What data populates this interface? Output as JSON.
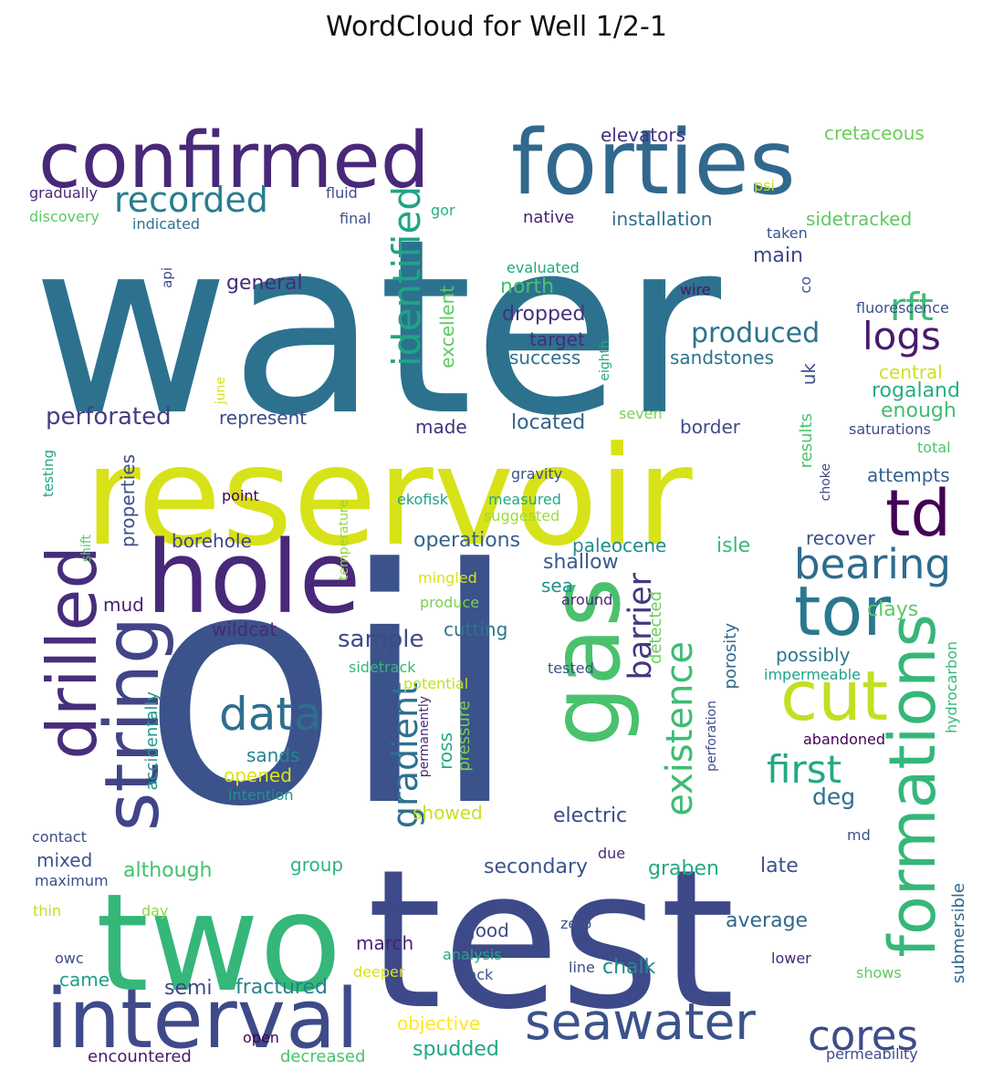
{
  "title": "WordCloud for Well 1/2-1",
  "words": [
    {
      "text": "water",
      "color": "#2c728e"
    },
    {
      "text": "oil",
      "color": "#3b528b"
    },
    {
      "text": "reservoir",
      "color": "#d8e219"
    },
    {
      "text": "test",
      "color": "#3e4989"
    },
    {
      "text": "two",
      "color": "#35b779"
    },
    {
      "text": "confirmed",
      "color": "#482878"
    },
    {
      "text": "forties",
      "color": "#31688e"
    },
    {
      "text": "hole",
      "color": "#482878"
    },
    {
      "text": "interval",
      "color": "#3e4a89"
    },
    {
      "text": "gas",
      "color": "#4ac16d"
    },
    {
      "text": "drilled",
      "color": "#472d7b"
    },
    {
      "text": "string",
      "color": "#414487"
    },
    {
      "text": "formations",
      "color": "#35b779"
    },
    {
      "text": "seawater",
      "color": "#3b528b"
    },
    {
      "text": "cut",
      "color": "#c2df23"
    },
    {
      "text": "tor",
      "color": "#2a788e"
    },
    {
      "text": "td",
      "color": "#440154"
    },
    {
      "text": "data",
      "color": "#2e6f8e"
    },
    {
      "text": "recorded",
      "color": "#287d8e"
    },
    {
      "text": "identified",
      "color": "#20a386"
    },
    {
      "text": "bearing",
      "color": "#2f6b8e"
    },
    {
      "text": "rft",
      "color": "#3dbc74"
    },
    {
      "text": "logs",
      "color": "#481b6d"
    },
    {
      "text": "first",
      "color": "#23a983"
    },
    {
      "text": "cores",
      "color": "#3e4c8a"
    },
    {
      "text": "gradient",
      "color": "#2d708e"
    },
    {
      "text": "existence",
      "color": "#3fbc73"
    },
    {
      "text": "barrier",
      "color": "#453781"
    },
    {
      "text": "produced",
      "color": "#2c738e"
    },
    {
      "text": "perforated",
      "color": "#433e85"
    },
    {
      "text": "sample",
      "color": "#3e4a89"
    },
    {
      "text": "general",
      "color": "#472c7a"
    },
    {
      "text": "deg",
      "color": "#2d708e"
    },
    {
      "text": "elevators",
      "color": "#46317e"
    },
    {
      "text": "cretaceous",
      "color": "#6ccd5a"
    },
    {
      "text": "native",
      "color": "#481f70"
    },
    {
      "text": "installation",
      "color": "#2e6e8e"
    },
    {
      "text": "sidetracked",
      "color": "#5ec962"
    },
    {
      "text": "main",
      "color": "#3f4788"
    },
    {
      "text": "north",
      "color": "#4ac16d"
    },
    {
      "text": "dropped",
      "color": "#46307e"
    },
    {
      "text": "target",
      "color": "#472c7a"
    },
    {
      "text": "success",
      "color": "#2d718e"
    },
    {
      "text": "sandstones",
      "color": "#2c728e"
    },
    {
      "text": "excellent",
      "color": "#5cc863"
    },
    {
      "text": "uk",
      "color": "#3b528b"
    },
    {
      "text": "central",
      "color": "#d0e11c"
    },
    {
      "text": "rogaland",
      "color": "#27ad81"
    },
    {
      "text": "enough",
      "color": "#40bd72"
    },
    {
      "text": "represent",
      "color": "#3e4c8a"
    },
    {
      "text": "made",
      "color": "#46327e"
    },
    {
      "text": "located",
      "color": "#33638d"
    },
    {
      "text": "border",
      "color": "#3e4a89"
    },
    {
      "text": "saturations",
      "color": "#3e4c8a"
    },
    {
      "text": "total",
      "color": "#4ec36b"
    },
    {
      "text": "attempts",
      "color": "#34608d"
    },
    {
      "text": "results",
      "color": "#4cc26c"
    },
    {
      "text": "properties",
      "color": "#3e4c8a"
    },
    {
      "text": "borehole",
      "color": "#414487"
    },
    {
      "text": "operations",
      "color": "#34618d"
    },
    {
      "text": "paleocene",
      "color": "#23898e"
    },
    {
      "text": "isle",
      "color": "#38b977"
    },
    {
      "text": "recover",
      "color": "#3b528b"
    },
    {
      "text": "shallow",
      "color": "#375a8c"
    },
    {
      "text": "sea",
      "color": "#21908d"
    },
    {
      "text": "clays",
      "color": "#5ec962"
    },
    {
      "text": "mud",
      "color": "#482475"
    },
    {
      "text": "wildcat",
      "color": "#482878"
    },
    {
      "text": "cutting",
      "color": "#2a768e"
    },
    {
      "text": "detected",
      "color": "#6ccd5a"
    },
    {
      "text": "porosity",
      "color": "#30698e"
    },
    {
      "text": "possibly",
      "color": "#2a788e"
    },
    {
      "text": "hydrocarbon",
      "color": "#35b779"
    },
    {
      "text": "impermeable",
      "color": "#20a386"
    },
    {
      "text": "sands",
      "color": "#25848e"
    },
    {
      "text": "opened",
      "color": "#dde318"
    },
    {
      "text": "intention",
      "color": "#20928c"
    },
    {
      "text": "ross",
      "color": "#25ab82"
    },
    {
      "text": "pressure",
      "color": "#74d055"
    },
    {
      "text": "showed",
      "color": "#c8e020"
    },
    {
      "text": "electric",
      "color": "#3e4989"
    },
    {
      "text": "accidentally",
      "color": "#1f968b"
    },
    {
      "text": "mixed",
      "color": "#3b528b"
    },
    {
      "text": "although",
      "color": "#44bf70"
    },
    {
      "text": "group",
      "color": "#2fb47c"
    },
    {
      "text": "secondary",
      "color": "#3a548c"
    },
    {
      "text": "graben",
      "color": "#23a983"
    },
    {
      "text": "late",
      "color": "#3b528b"
    },
    {
      "text": "submersible",
      "color": "#31688e"
    },
    {
      "text": "average",
      "color": "#31688e"
    },
    {
      "text": "good",
      "color": "#3e4c8a"
    },
    {
      "text": "march",
      "color": "#482374"
    },
    {
      "text": "semi",
      "color": "#3e4989"
    },
    {
      "text": "fractured",
      "color": "#25838e"
    },
    {
      "text": "came",
      "color": "#1fa088"
    },
    {
      "text": "chalk",
      "color": "#238a8d"
    },
    {
      "text": "objective",
      "color": "#fde725"
    },
    {
      "text": "spudded",
      "color": "#21a685"
    },
    {
      "text": "encountered",
      "color": "#481a6c"
    },
    {
      "text": "decreased",
      "color": "#4ac16d"
    },
    {
      "text": "permeability",
      "color": "#3e4c8a"
    },
    {
      "text": "gradually",
      "color": "#472a7a"
    },
    {
      "text": "discovery",
      "color": "#5ec962"
    },
    {
      "text": "fluid",
      "color": "#3e4c8a"
    },
    {
      "text": "indicated",
      "color": "#2d718e"
    },
    {
      "text": "final",
      "color": "#3b528b"
    },
    {
      "text": "gor",
      "color": "#29af7f"
    },
    {
      "text": "psi",
      "color": "#c2df23"
    },
    {
      "text": "taken",
      "color": "#3b528b"
    },
    {
      "text": "api",
      "color": "#3e4c8a"
    },
    {
      "text": "evaluated",
      "color": "#22a884"
    },
    {
      "text": "wire",
      "color": "#481668"
    },
    {
      "text": "co",
      "color": "#3b528b"
    },
    {
      "text": "fluorescence",
      "color": "#3b528b"
    },
    {
      "text": "june",
      "color": "#d8e219"
    },
    {
      "text": "eighth",
      "color": "#22a785"
    },
    {
      "text": "seven",
      "color": "#7ad151"
    },
    {
      "text": "testing",
      "color": "#20a386"
    },
    {
      "text": "point",
      "color": "#440154"
    },
    {
      "text": "gravity",
      "color": "#3b528b"
    },
    {
      "text": "ekofisk",
      "color": "#20a386"
    },
    {
      "text": "measured",
      "color": "#22a884"
    },
    {
      "text": "suggested",
      "color": "#a0da39"
    },
    {
      "text": "choke",
      "color": "#3e4989"
    },
    {
      "text": "temperature",
      "color": "#8fd744"
    },
    {
      "text": "shift",
      "color": "#5ec962"
    },
    {
      "text": "mingled",
      "color": "#d8e219"
    },
    {
      "text": "produce",
      "color": "#7ad151"
    },
    {
      "text": "around",
      "color": "#482878"
    },
    {
      "text": "sidetrack",
      "color": "#35b779"
    },
    {
      "text": "tested",
      "color": "#3b528b"
    },
    {
      "text": "potential",
      "color": "#c2df23"
    },
    {
      "text": "permanently",
      "color": "#482878"
    },
    {
      "text": "abandoned",
      "color": "#440154"
    },
    {
      "text": "perforation",
      "color": "#3e4c8a"
    },
    {
      "text": "contact",
      "color": "#3e4c8a"
    },
    {
      "text": "md",
      "color": "#3b528b"
    },
    {
      "text": "due",
      "color": "#482878"
    },
    {
      "text": "maximum",
      "color": "#3e4c8a"
    },
    {
      "text": "thin",
      "color": "#c2df23"
    },
    {
      "text": "day",
      "color": "#8fd744"
    },
    {
      "text": "zero",
      "color": "#3b528b"
    },
    {
      "text": "owc",
      "color": "#3e4c8a"
    },
    {
      "text": "analysis",
      "color": "#22a884"
    },
    {
      "text": "lack",
      "color": "#3b528b"
    },
    {
      "text": "line",
      "color": "#3e4c8a"
    },
    {
      "text": "lower",
      "color": "#482878"
    },
    {
      "text": "deeper",
      "color": "#d8e219"
    },
    {
      "text": "shows",
      "color": "#5ec962"
    },
    {
      "text": "open",
      "color": "#440154"
    }
  ]
}
